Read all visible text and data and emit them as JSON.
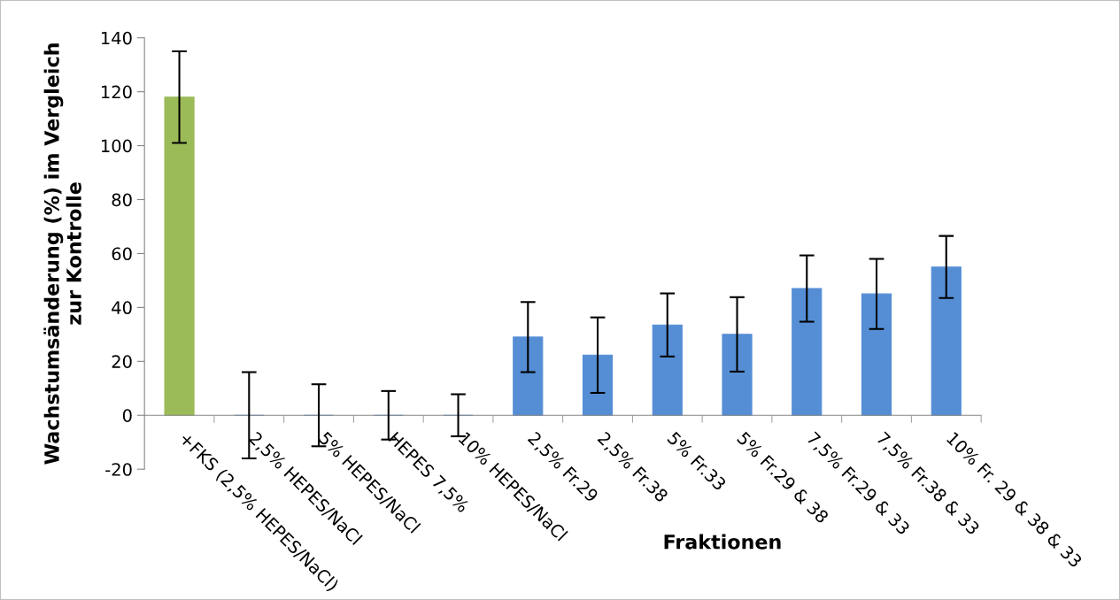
{
  "chart_data": {
    "type": "bar",
    "ylabel": "Wachstumsänderung (%) im Vergleich\nzur Kontrolle",
    "xlabel": "Fraktionen",
    "categories": [
      "+FKS (2,5% HEPES/NaCl)",
      "2,5% HEPES/NaCl",
      "5% HEPES/NaCl",
      "HEPES 7,5%",
      "10% HEPES/NaCl",
      "2,5% Fr.29",
      "2,5% Fr.38",
      "5% Fr.33",
      "5% Fr.29 & 38",
      "7,5% Fr.29 & 33",
      "7,5% Fr.38 & 33",
      "10% Fr. 29 & 38 & 33"
    ],
    "values": [
      118,
      0,
      0,
      0,
      0,
      29,
      22.3,
      33.5,
      30,
      47,
      45,
      55
    ],
    "errors": [
      17,
      16,
      11.5,
      9,
      7.8,
      13,
      14,
      11.7,
      13.8,
      12.3,
      13,
      11.5
    ],
    "colors": [
      "#9bbb59",
      "#558ed5",
      "#558ed5",
      "#558ed5",
      "#558ed5",
      "#558ed5",
      "#558ed5",
      "#558ed5",
      "#558ed5",
      "#558ed5",
      "#558ed5",
      "#558ed5"
    ],
    "ylim": [
      -20,
      140
    ],
    "yticks": [
      -20,
      0,
      20,
      40,
      60,
      80,
      100,
      120,
      140
    ],
    "grid": false,
    "legend": false
  }
}
